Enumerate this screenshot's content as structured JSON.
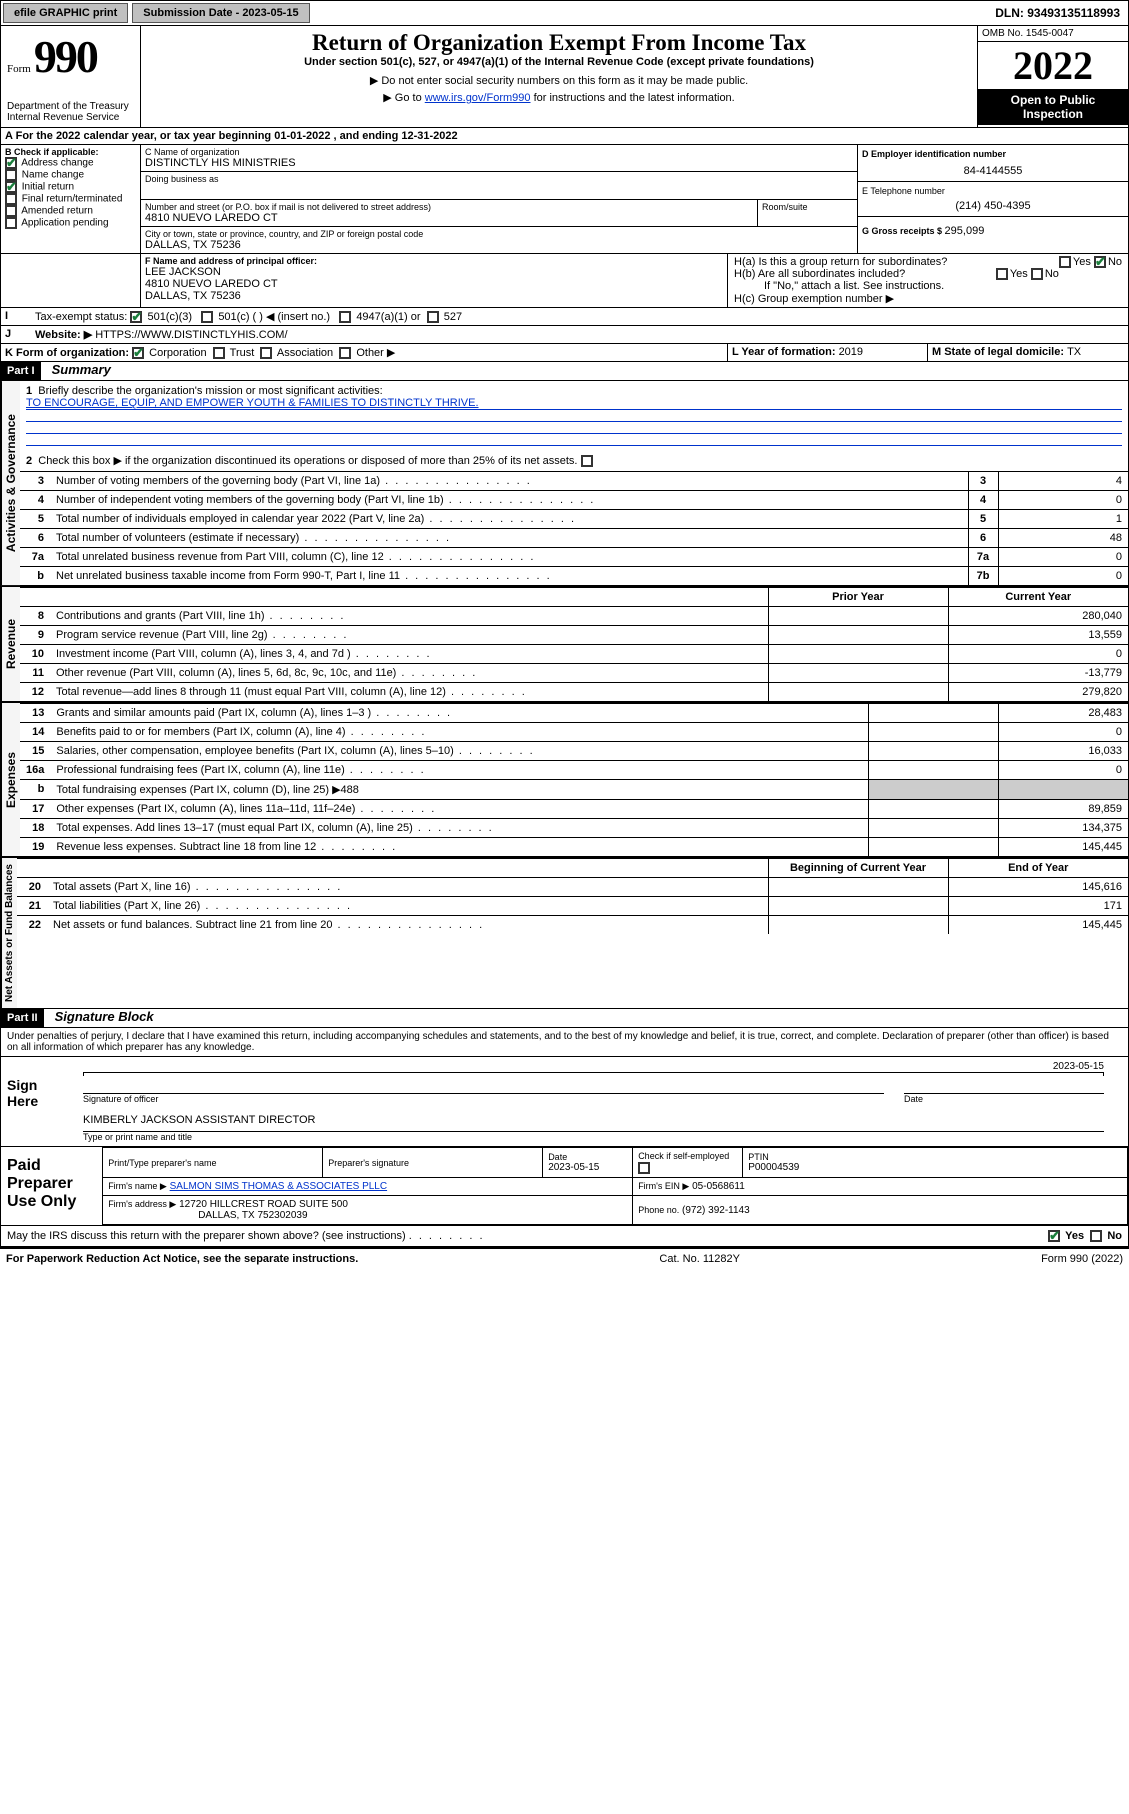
{
  "topbar": {
    "efile": "efile GRAPHIC print",
    "submission_label": "Submission Date - 2023-05-15",
    "dln": "DLN: 93493135118993"
  },
  "header": {
    "form_word": "Form",
    "form_num": "990",
    "dept": "Department of the Treasury",
    "irs": "Internal Revenue Service",
    "title": "Return of Organization Exempt From Income Tax",
    "sub1": "Under section 501(c), 527, or 4947(a)(1) of the Internal Revenue Code (except private foundations)",
    "sub2": "▶ Do not enter social security numbers on this form as it may be made public.",
    "sub3_pre": "▶ Go to ",
    "sub3_link": "www.irs.gov/Form990",
    "sub3_post": " for instructions and the latest information.",
    "omb": "OMB No. 1545-0047",
    "year": "2022",
    "badge": "Open to Public Inspection"
  },
  "A": {
    "text": "For the 2022 calendar year, or tax year beginning 01-01-2022   , and ending 12-31-2022",
    "label": "A"
  },
  "B": {
    "label": "B Check if applicable:",
    "items": [
      {
        "label": "Address change",
        "checked": true
      },
      {
        "label": "Name change",
        "checked": false
      },
      {
        "label": "Initial return",
        "checked": true
      },
      {
        "label": "Final return/terminated",
        "checked": false
      },
      {
        "label": "Amended return",
        "checked": false
      },
      {
        "label": "Application pending",
        "checked": false
      }
    ]
  },
  "C": {
    "name_label": "C Name of organization",
    "name": "DISTINCTLY HIS MINISTRIES",
    "dba_label": "Doing business as",
    "addr_label": "Number and street (or P.O. box if mail is not delivered to street address)",
    "room_label": "Room/suite",
    "addr": "4810 NUEVO LAREDO CT",
    "city_label": "City or town, state or province, country, and ZIP or foreign postal code",
    "city": "DALLAS, TX  75236"
  },
  "D": {
    "label": "D Employer identification number",
    "val": "84-4144555"
  },
  "E": {
    "label": "E Telephone number",
    "val": "(214) 450-4395"
  },
  "G": {
    "label": "G Gross receipts $ ",
    "val": "295,099"
  },
  "F": {
    "label": "F Name and address of principal officer:",
    "name": "LEE JACKSON",
    "addr1": "4810 NUEVO LAREDO CT",
    "addr2": "DALLAS, TX  75236"
  },
  "H": {
    "a": "H(a)  Is this a group return for subordinates?",
    "b": "H(b)  Are all subordinates included?",
    "b_note": "If \"No,\" attach a list. See instructions.",
    "c": "H(c)  Group exemption number ▶",
    "yes": "Yes",
    "no": "No"
  },
  "I": {
    "label": "Tax-exempt status:",
    "opts": [
      "501(c)(3)",
      "501(c) (  ) ◀ (insert no.)",
      "4947(a)(1) or",
      "527"
    ]
  },
  "J": {
    "label": "Website: ▶",
    "val": "HTTPS://WWW.DISTINCTLYHIS.COM/"
  },
  "K": {
    "label": "K Form of organization:",
    "opts": [
      "Corporation",
      "Trust",
      "Association",
      "Other ▶"
    ]
  },
  "L": {
    "label": "L Year of formation: ",
    "val": "2019"
  },
  "M": {
    "label": "M State of legal domicile: ",
    "val": "TX"
  },
  "partI": {
    "header": "Part I",
    "title": "Summary",
    "side_ag": "Activities & Governance",
    "side_rev": "Revenue",
    "side_exp": "Expenses",
    "side_net": "Net Assets or Fund Balances",
    "line1_label": "Briefly describe the organization's mission or most significant activities:",
    "line1_text": "TO ENCOURAGE, EQUIP, AND EMPOWER YOUTH & FAMILIES TO DISTINCTLY THRIVE.",
    "line2": "Check this box ▶  if the organization discontinued its operations or disposed of more than 25% of its net assets.",
    "rows_ag": [
      {
        "n": "3",
        "t": "Number of voting members of the governing body (Part VI, line 1a)",
        "b": "3",
        "v": "4"
      },
      {
        "n": "4",
        "t": "Number of independent voting members of the governing body (Part VI, line 1b)",
        "b": "4",
        "v": "0"
      },
      {
        "n": "5",
        "t": "Total number of individuals employed in calendar year 2022 (Part V, line 2a)",
        "b": "5",
        "v": "1"
      },
      {
        "n": "6",
        "t": "Total number of volunteers (estimate if necessary)",
        "b": "6",
        "v": "48"
      },
      {
        "n": "7a",
        "t": "Total unrelated business revenue from Part VIII, column (C), line 12",
        "b": "7a",
        "v": "0"
      },
      {
        "n": "b",
        "t": "Net unrelated business taxable income from Form 990-T, Part I, line 11",
        "b": "7b",
        "v": "0"
      }
    ],
    "prior": "Prior Year",
    "current": "Current Year",
    "rows_rev": [
      {
        "n": "8",
        "t": "Contributions and grants (Part VIII, line 1h)",
        "p": "",
        "c": "280,040"
      },
      {
        "n": "9",
        "t": "Program service revenue (Part VIII, line 2g)",
        "p": "",
        "c": "13,559"
      },
      {
        "n": "10",
        "t": "Investment income (Part VIII, column (A), lines 3, 4, and 7d )",
        "p": "",
        "c": "0"
      },
      {
        "n": "11",
        "t": "Other revenue (Part VIII, column (A), lines 5, 6d, 8c, 9c, 10c, and 11e)",
        "p": "",
        "c": "-13,779"
      },
      {
        "n": "12",
        "t": "Total revenue—add lines 8 through 11 (must equal Part VIII, column (A), line 12)",
        "p": "",
        "c": "279,820"
      }
    ],
    "rows_exp": [
      {
        "n": "13",
        "t": "Grants and similar amounts paid (Part IX, column (A), lines 1–3 )",
        "p": "",
        "c": "28,483"
      },
      {
        "n": "14",
        "t": "Benefits paid to or for members (Part IX, column (A), line 4)",
        "p": "",
        "c": "0"
      },
      {
        "n": "15",
        "t": "Salaries, other compensation, employee benefits (Part IX, column (A), lines 5–10)",
        "p": "",
        "c": "16,033"
      },
      {
        "n": "16a",
        "t": "Professional fundraising fees (Part IX, column (A), line 11e)",
        "p": "",
        "c": "0"
      },
      {
        "n": "b",
        "t": "Total fundraising expenses (Part IX, column (D), line 25) ▶488",
        "shade": true
      },
      {
        "n": "17",
        "t": "Other expenses (Part IX, column (A), lines 11a–11d, 11f–24e)",
        "p": "",
        "c": "89,859"
      },
      {
        "n": "18",
        "t": "Total expenses. Add lines 13–17 (must equal Part IX, column (A), line 25)",
        "p": "",
        "c": "134,375"
      },
      {
        "n": "19",
        "t": "Revenue less expenses. Subtract line 18 from line 12",
        "p": "",
        "c": "145,445"
      }
    ],
    "begin": "Beginning of Current Year",
    "end": "End of Year",
    "rows_net": [
      {
        "n": "20",
        "t": "Total assets (Part X, line 16)",
        "p": "",
        "c": "145,616"
      },
      {
        "n": "21",
        "t": "Total liabilities (Part X, line 26)",
        "p": "",
        "c": "171"
      },
      {
        "n": "22",
        "t": "Net assets or fund balances. Subtract line 21 from line 20",
        "p": "",
        "c": "145,445"
      }
    ]
  },
  "partII": {
    "header": "Part II",
    "title": "Signature Block",
    "decl": "Under penalties of perjury, I declare that I have examined this return, including accompanying schedules and statements, and to the best of my knowledge and belief, it is true, correct, and complete. Declaration of preparer (other than officer) is based on all information of which preparer has any knowledge.",
    "sign_here": "Sign Here",
    "sig_officer": "Signature of officer",
    "date": "Date",
    "date_val": "2023-05-15",
    "officer_name": "KIMBERLY JACKSON  ASSISTANT DIRECTOR",
    "officer_label": "Type or print name and title",
    "paid": "Paid Preparer Use Only",
    "col_name": "Print/Type preparer's name",
    "col_sig": "Preparer's signature",
    "col_date": "Date",
    "col_date_val": "2023-05-15",
    "col_check": "Check     if self-employed",
    "col_ptin": "PTIN",
    "ptin": "P00004539",
    "firm_name_l": "Firm's name    ▶",
    "firm_name": "SALMON SIMS THOMAS & ASSOCIATES PLLC",
    "firm_ein_l": "Firm's EIN ▶",
    "firm_ein": "05-0568611",
    "firm_addr_l": "Firm's address ▶",
    "firm_addr1": "12720 HILLCREST ROAD SUITE 500",
    "firm_addr2": "DALLAS, TX  752302039",
    "phone_l": "Phone no.",
    "phone": "(972) 392-1143",
    "may": "May the IRS discuss this return with the preparer shown above? (see instructions)",
    "yes": "Yes",
    "no": "No"
  },
  "footer": {
    "l": "For Paperwork Reduction Act Notice, see the separate instructions.",
    "c": "Cat. No. 11282Y",
    "r": "Form 990 (2022)"
  }
}
